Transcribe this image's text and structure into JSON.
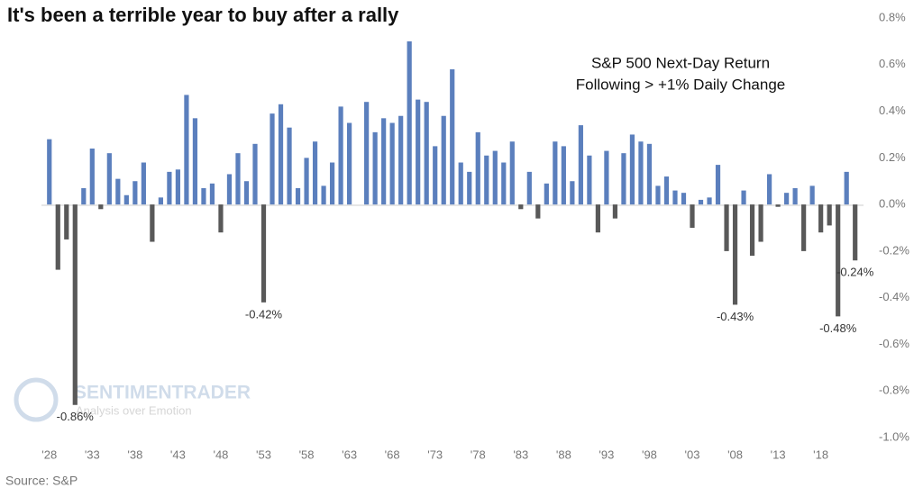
{
  "chart_data": {
    "type": "bar",
    "title": "It's been a terrible year to buy after a rally",
    "subtitle": [
      "S&P 500 Next-Day Return",
      "Following > +1% Daily Change"
    ],
    "source": "Source: S&P",
    "watermark": [
      "SENTIMENTRADER",
      "Analysis over Emotion"
    ],
    "categories": [
      "'28",
      null,
      null,
      null,
      null,
      "'33",
      null,
      null,
      null,
      null,
      "'38",
      null,
      null,
      null,
      null,
      "'43",
      null,
      null,
      null,
      null,
      "'48",
      null,
      null,
      null,
      null,
      "'53",
      null,
      null,
      null,
      null,
      "'58",
      null,
      null,
      null,
      null,
      "'63",
      null,
      null,
      null,
      null,
      "'68",
      null,
      null,
      null,
      null,
      "'73",
      null,
      null,
      null,
      null,
      "'78",
      null,
      null,
      null,
      null,
      "'83",
      null,
      null,
      null,
      null,
      "'88",
      null,
      null,
      null,
      null,
      "'93",
      null,
      null,
      null,
      null,
      "'98",
      null,
      null,
      null,
      null,
      "'03",
      null,
      null,
      null,
      null,
      "'08",
      null,
      null,
      null,
      null,
      "'13",
      null,
      null,
      null,
      null,
      "'18",
      null,
      null,
      null,
      null
    ],
    "values": [
      0.28,
      -0.28,
      -0.15,
      -0.86,
      0.07,
      0.24,
      -0.02,
      0.22,
      0.11,
      0.04,
      0.1,
      0.18,
      -0.16,
      0.03,
      0.14,
      0.15,
      0.47,
      0.37,
      0.07,
      0.09,
      -0.12,
      0.13,
      0.22,
      0.1,
      0.26,
      -0.42,
      0.39,
      0.43,
      0.33,
      0.07,
      0.2,
      0.27,
      0.08,
      0.18,
      0.42,
      0.35,
      0,
      0.44,
      0.31,
      0.37,
      0.35,
      0.38,
      0.7,
      0.45,
      0.44,
      0.25,
      0.38,
      0.58,
      0.18,
      0.14,
      0.31,
      0.21,
      0.23,
      0.18,
      0.27,
      -0.02,
      0.14,
      -0.06,
      0.09,
      0.27,
      0.25,
      0.1,
      0.34,
      0.21,
      -0.12,
      0.23,
      -0.06,
      0.22,
      0.3,
      0.27,
      0.26,
      0.08,
      0.12,
      0.06,
      0.05,
      -0.1,
      0.02,
      0.03,
      0.17,
      -0.2,
      -0.43,
      0.06,
      -0.22,
      -0.16,
      0.13,
      -0.01,
      0.05,
      0.07,
      -0.2,
      0.08,
      -0.12,
      -0.09,
      -0.48,
      0.14,
      -0.24
    ],
    "value_labels": [
      null,
      null,
      null,
      "-0.86%",
      null,
      null,
      null,
      null,
      null,
      null,
      null,
      null,
      null,
      null,
      null,
      null,
      null,
      null,
      null,
      null,
      null,
      null,
      null,
      null,
      null,
      "-0.42%",
      null,
      null,
      null,
      null,
      null,
      null,
      null,
      null,
      null,
      null,
      null,
      null,
      null,
      null,
      null,
      null,
      null,
      null,
      null,
      null,
      null,
      null,
      null,
      null,
      null,
      null,
      null,
      null,
      null,
      null,
      null,
      null,
      null,
      null,
      null,
      null,
      null,
      null,
      null,
      null,
      null,
      null,
      null,
      null,
      null,
      null,
      null,
      null,
      null,
      null,
      null,
      null,
      null,
      null,
      "-0.43%",
      null,
      null,
      null,
      null,
      null,
      null,
      null,
      null,
      null,
      null,
      null,
      "-0.48%",
      null,
      "-0.24%"
    ],
    "colors": {
      "positive": "#5b7fbd",
      "negative": "#595959"
    },
    "ylim": [
      -1.0,
      0.8
    ],
    "yticks": [
      {
        "value": 0.8,
        "label": "0.8%"
      },
      {
        "value": 0.6,
        "label": "0.6%"
      },
      {
        "value": 0.4,
        "label": "0.4%"
      },
      {
        "value": 0.2,
        "label": "0.2%"
      },
      {
        "value": 0,
        "label": "0.0%"
      },
      {
        "value": -0.2,
        "label": "-0.2%"
      },
      {
        "value": -0.4,
        "label": "-0.4%"
      },
      {
        "value": -0.6,
        "label": "-0.6%"
      },
      {
        "value": -0.8,
        "label": "-0.8%"
      },
      {
        "value": -1.0,
        "label": "-1.0%"
      }
    ],
    "y_axis_side": "right",
    "grid": false
  }
}
